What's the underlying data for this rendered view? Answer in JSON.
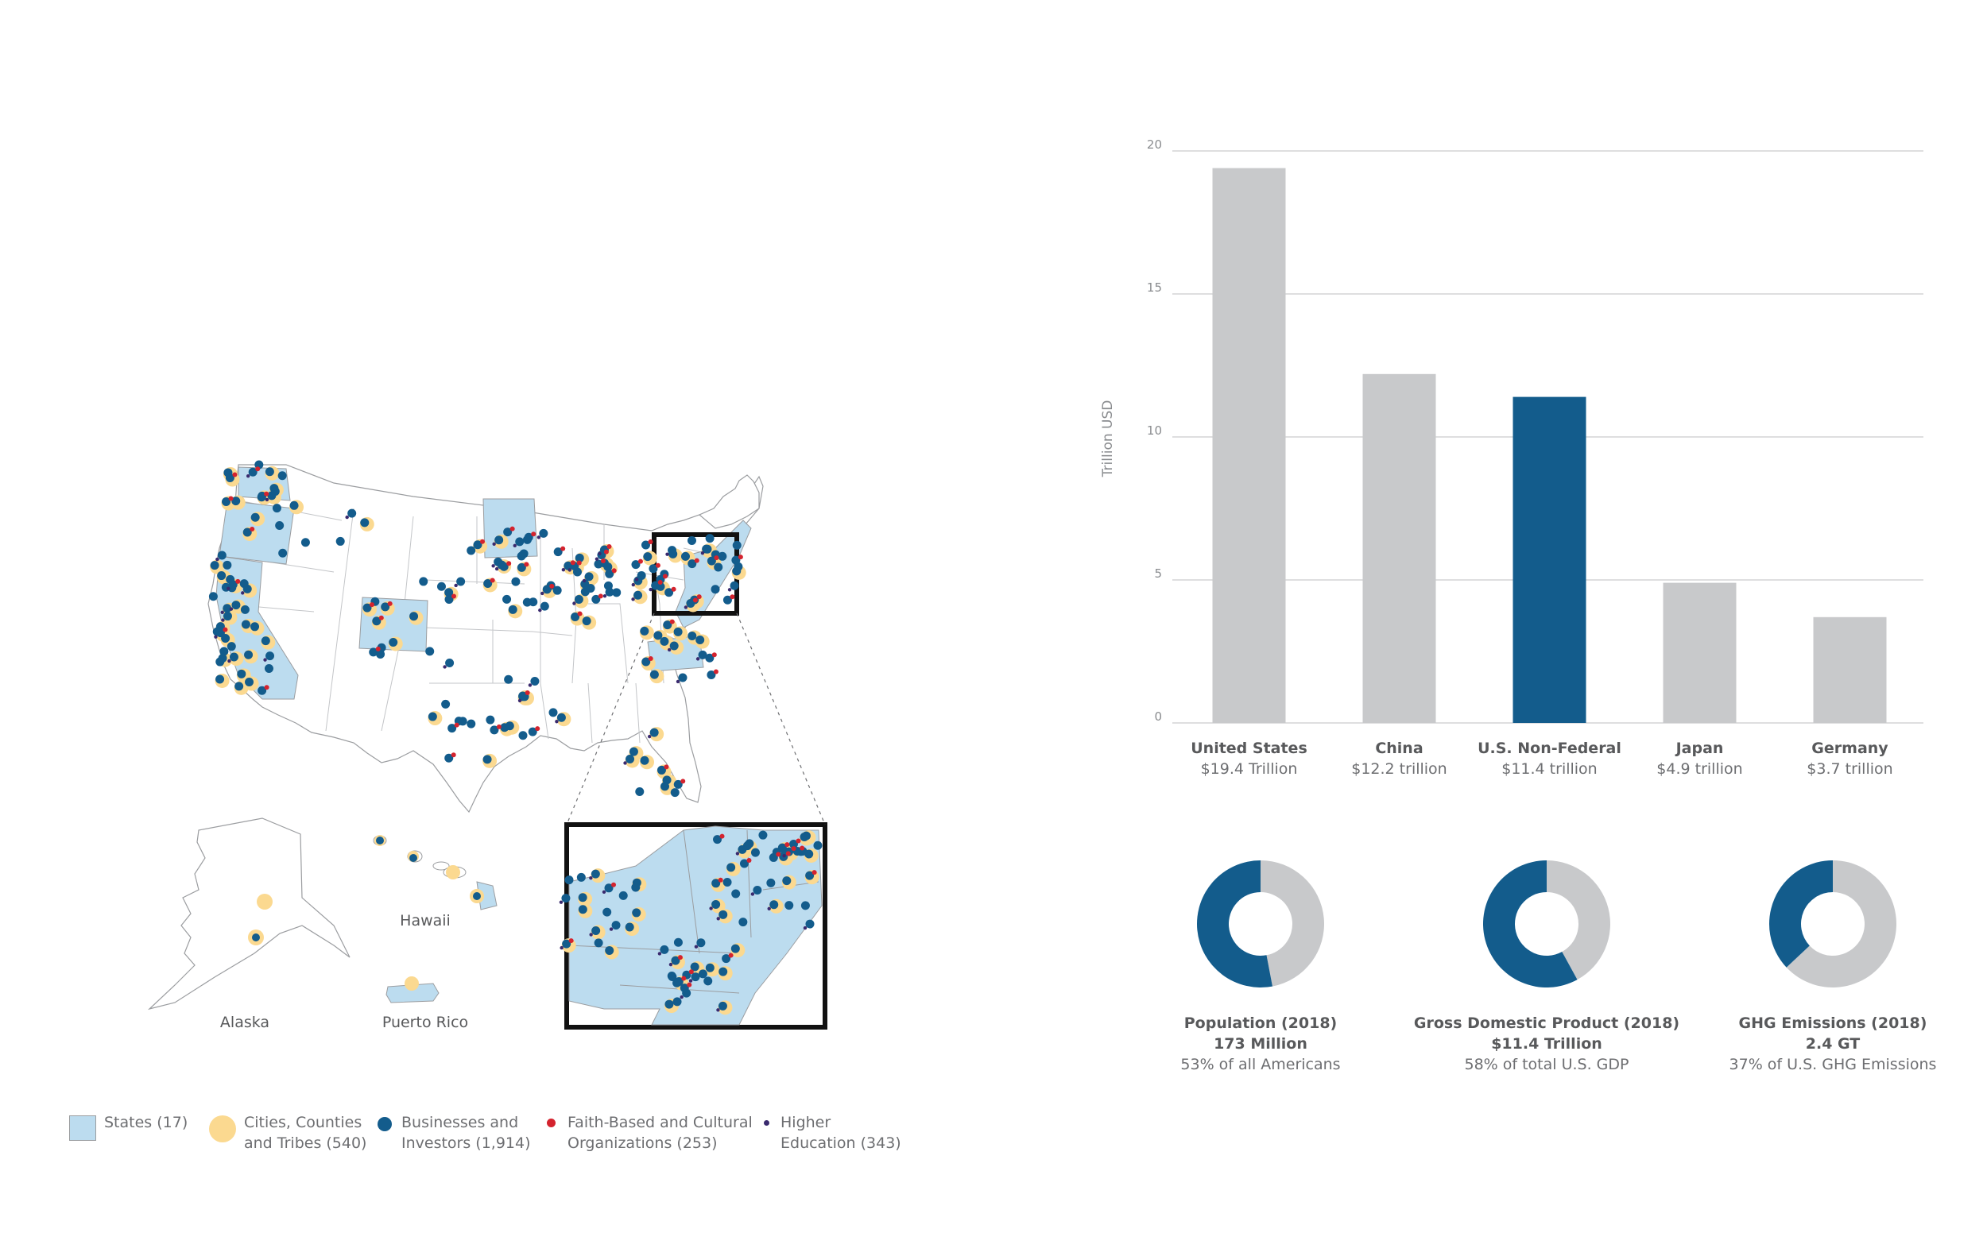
{
  "colors": {
    "grey_bar": "#c8c9cb",
    "blue": "#135c8c",
    "state_fill": "#bcdcef",
    "city_fill": "#fbd990",
    "business": "#135c8c",
    "faith": "#d4232e",
    "higher_ed": "#3a2a6e",
    "gridline": "#c9cacc",
    "text": "#58595b",
    "outline": "#9b9da0"
  },
  "map": {
    "labels": {
      "alaska": "Alaska",
      "hawaii": "Hawaii",
      "puerto_rico": "Puerto Rico"
    }
  },
  "legend": [
    {
      "key": "states",
      "line1": "States (17)",
      "line2": ""
    },
    {
      "key": "cities",
      "line1": "Cities, Counties",
      "line2": "and Tribes (540)"
    },
    {
      "key": "business",
      "line1": "Businesses and",
      "line2": "Investors (1,914)"
    },
    {
      "key": "faith",
      "line1": "Faith-Based and Cultural",
      "line2": "Organizations (253)"
    },
    {
      "key": "higher_ed",
      "line1": "Higher",
      "line2": "Education (343)"
    }
  ],
  "chart_data": [
    {
      "type": "bar",
      "title": "",
      "xlabel": "",
      "ylabel": "Trillion USD",
      "ylim": [
        0,
        20
      ],
      "yticks": [
        0,
        5,
        10,
        15,
        20
      ],
      "grid": true,
      "categories": [
        "United States",
        "China",
        "U.S. Non-Federal",
        "Japan",
        "Germany"
      ],
      "sublabels": [
        "$19.4 Trillion",
        "$12.2 trillion",
        "$11.4 trillion",
        "$4.9 trillion",
        "$3.7 trillion"
      ],
      "values": [
        19.4,
        12.2,
        11.4,
        4.9,
        3.7
      ],
      "highlight_index": 2
    },
    {
      "type": "pie",
      "slices": [
        {
          "title": "Population (2018)",
          "value_text": "173 Million",
          "note": "53% of all Americans",
          "percent": 53
        },
        {
          "title": "Gross Domestic Product (2018)",
          "value_text": "$11.4 Trillion",
          "note": "58% of total U.S. GDP",
          "percent": 58
        },
        {
          "title": "GHG Emissions (2018)",
          "value_text": "2.4 GT",
          "note": "37% of U.S. GHG Emissions",
          "percent": 37
        }
      ]
    }
  ]
}
